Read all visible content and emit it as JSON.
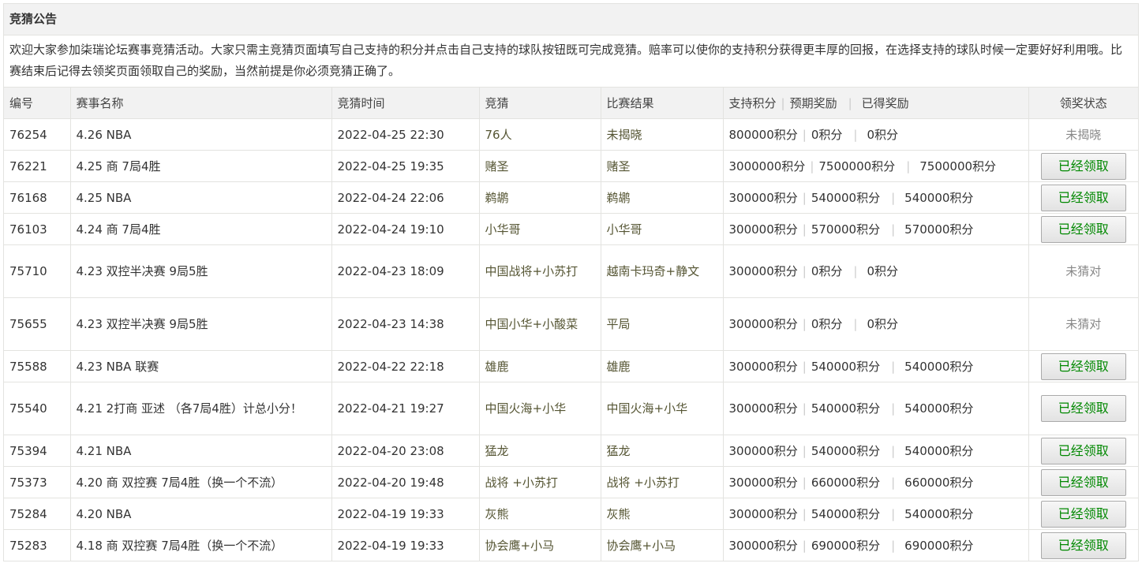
{
  "panel": {
    "title": "竞猜公告",
    "notice": "欢迎大家参加柒瑞论坛赛事竞猜活动。大家只需主竞猜页面填写自己支持的积分并点击自己支持的球队按钮既可完成竞猜。赔率可以使你的支持积分获得更丰厚的回报，在选择支持的球队时候一定要好好利用哦。比赛结束后记得去领奖页面领取自己的奖励，当然前提是你必须竞猜正确了。"
  },
  "table": {
    "headers": {
      "id": "编号",
      "name": "赛事名称",
      "time": "竞猜时间",
      "guess": "竞猜",
      "result": "比赛结果",
      "support": "支持积分",
      "expected": "预期奖励",
      "earned": "已得奖励",
      "status": "领奖状态"
    },
    "separator": "|",
    "rows": [
      {
        "id": "76254",
        "name": "4.26 NBA",
        "time": "2022-04-25 22:30",
        "guess": "76人",
        "result": "未揭晓",
        "support": "800000积分",
        "expected": "0积分",
        "earned": "0积分",
        "status": "未揭晓",
        "claimed": false
      },
      {
        "id": "76221",
        "name": "4.25 商 7局4胜",
        "time": "2022-04-25 19:35",
        "guess": "赌圣",
        "result": "赌圣",
        "support": "3000000积分",
        "expected": "7500000积分",
        "earned": "7500000积分",
        "status": "已经领取",
        "claimed": true
      },
      {
        "id": "76168",
        "name": "4.25 NBA",
        "time": "2022-04-24 22:06",
        "guess": "鹈鹕",
        "result": "鹈鹕",
        "support": "300000积分",
        "expected": "540000积分",
        "earned": "540000积分",
        "status": "已经领取",
        "claimed": true
      },
      {
        "id": "76103",
        "name": "4.24 商 7局4胜",
        "time": "2022-04-24 19:10",
        "guess": "小华哥",
        "result": "小华哥",
        "support": "300000积分",
        "expected": "570000积分",
        "earned": "570000积分",
        "status": "已经领取",
        "claimed": true
      },
      {
        "id": "75710",
        "name": "4.23 双控半决赛 9局5胜",
        "time": "2022-04-23 18:09",
        "guess": "中国战将+小苏打",
        "result": "越南卡玛奇+静文",
        "support": "300000积分",
        "expected": "0积分",
        "earned": "0积分",
        "status": "未猜对",
        "claimed": false,
        "tall": true
      },
      {
        "id": "75655",
        "name": "4.23 双控半决赛 9局5胜",
        "time": "2022-04-23 14:38",
        "guess": "中国小华+小酸菜",
        "result": "平局",
        "support": "300000积分",
        "expected": "0积分",
        "earned": "0积分",
        "status": "未猜对",
        "claimed": false,
        "tall": true
      },
      {
        "id": "75588",
        "name": "4.23 NBA 联赛",
        "time": "2022-04-22 22:18",
        "guess": "雄鹿",
        "result": "雄鹿",
        "support": "300000积分",
        "expected": "540000积分",
        "earned": "540000积分",
        "status": "已经领取",
        "claimed": true
      },
      {
        "id": "75540",
        "name": "4.21 2打商 亚述 （各7局4胜）计总小分！",
        "time": "2022-04-21 19:27",
        "guess": "中国火海+小华",
        "result": "中国火海+小华",
        "support": "300000积分",
        "expected": "540000积分",
        "earned": "540000积分",
        "status": "已经领取",
        "claimed": true,
        "tall": true
      },
      {
        "id": "75394",
        "name": "4.21 NBA",
        "time": "2022-04-20 23:08",
        "guess": "猛龙",
        "result": "猛龙",
        "support": "300000积分",
        "expected": "540000积分",
        "earned": "540000积分",
        "status": "已经领取",
        "claimed": true
      },
      {
        "id": "75373",
        "name": "4.20 商 双控赛 7局4胜（换一个不流）",
        "time": "2022-04-20 19:48",
        "guess": "战将 +小苏打",
        "result": "战将 +小苏打",
        "support": "300000积分",
        "expected": "660000积分",
        "earned": "660000积分",
        "status": "已经领取",
        "claimed": true
      },
      {
        "id": "75284",
        "name": "4.20 NBA",
        "time": "2022-04-19 19:33",
        "guess": "灰熊",
        "result": "灰熊",
        "support": "300000积分",
        "expected": "540000积分",
        "earned": "540000积分",
        "status": "已经领取",
        "claimed": true
      },
      {
        "id": "75283",
        "name": "4.18 商 双控赛 7局4胜（换一个不流）",
        "time": "2022-04-19 19:33",
        "guess": "协会鹰+小马",
        "result": "协会鹰+小马",
        "support": "300000积分",
        "expected": "690000积分",
        "earned": "690000积分",
        "status": "已经领取",
        "claimed": true
      }
    ]
  }
}
